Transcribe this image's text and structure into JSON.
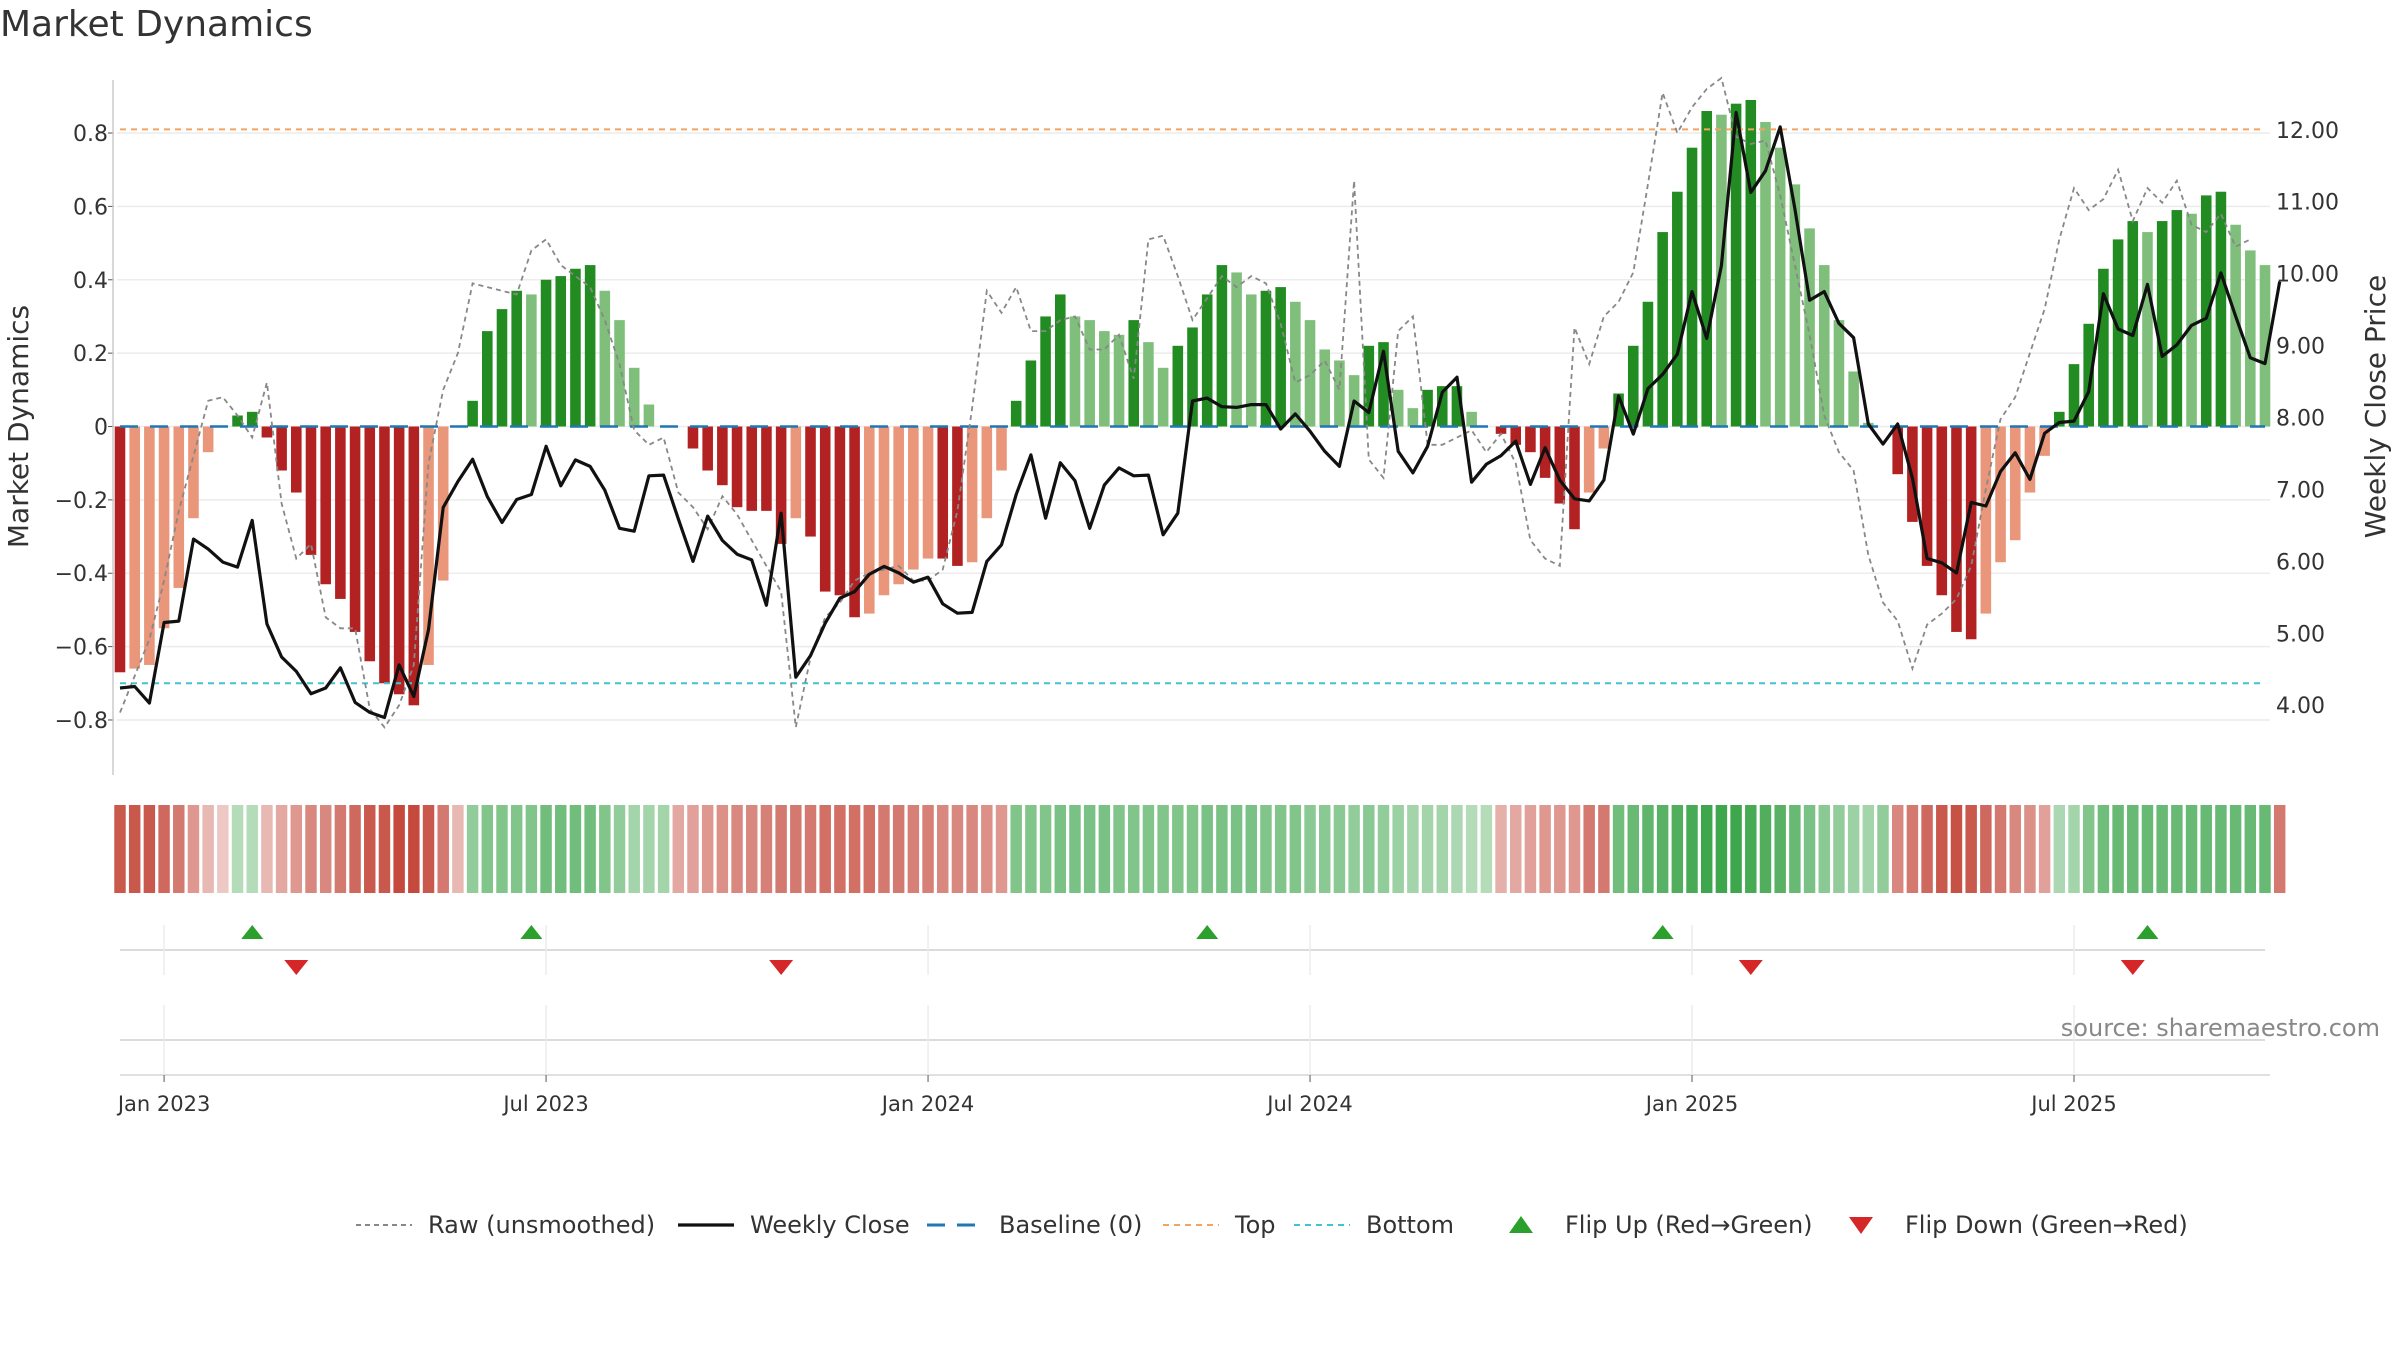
{
  "chart_data": {
    "type": "bar",
    "title": "Market Dynamics",
    "ylabel_left": "Market Dynamics",
    "ylabel_right": "Weekly Close Price",
    "ylim_left": [
      -0.95,
      0.95
    ],
    "ylim_right": [
      3.03,
      12.72
    ],
    "yticks_left": [
      "0.8",
      "0.6",
      "0.4",
      "0.2",
      "0",
      "−0.2",
      "−0.4",
      "−0.6",
      "−0.8"
    ],
    "yticks_right": [
      "12.00",
      "11.00",
      "10.00",
      "9.00",
      "8.00",
      "7.00",
      "6.00",
      "5.00",
      "4.00"
    ],
    "xticks": [
      "Jan 2023",
      "Jul 2023",
      "Jan 2024",
      "Jul 2024",
      "Jan 2025",
      "Jul 2025"
    ],
    "top_line": 0.81,
    "bottom_line": -0.7,
    "bars": [
      -0.67,
      -0.66,
      -0.65,
      -0.55,
      -0.44,
      -0.25,
      -0.07,
      0,
      0.03,
      0.04,
      -0.03,
      -0.12,
      -0.18,
      -0.35,
      -0.43,
      -0.47,
      -0.56,
      -0.64,
      -0.7,
      -0.73,
      -0.76,
      -0.65,
      -0.42,
      0,
      0.07,
      0.26,
      0.32,
      0.37,
      0.36,
      0.4,
      0.41,
      0.43,
      0.44,
      0.37,
      0.29,
      0.16,
      0.06,
      0,
      0,
      -0.06,
      -0.12,
      -0.16,
      -0.22,
      -0.23,
      -0.23,
      -0.32,
      -0.25,
      -0.3,
      -0.45,
      -0.46,
      -0.52,
      -0.51,
      -0.46,
      -0.43,
      -0.39,
      -0.36,
      -0.36,
      -0.38,
      -0.37,
      -0.25,
      -0.12,
      0.07,
      0.18,
      0.3,
      0.36,
      0.3,
      0.29,
      0.26,
      0.25,
      0.29,
      0.23,
      0.16,
      0.22,
      0.27,
      0.36,
      0.44,
      0.42,
      0.36,
      0.37,
      0.38,
      0.34,
      0.29,
      0.21,
      0.18,
      0.14,
      0.22,
      0.23,
      0.1,
      0.05,
      0.1,
      0.11,
      0.11,
      0.04,
      0,
      -0.02,
      -0.05,
      -0.07,
      -0.14,
      -0.21,
      -0.28,
      -0.18,
      -0.06,
      0.09,
      0.22,
      0.34,
      0.53,
      0.64,
      0.76,
      0.86,
      0.85,
      0.88,
      0.89,
      0.83,
      0.76,
      0.66,
      0.54,
      0.44,
      0.29,
      0.15,
      0.01,
      0,
      -0.13,
      -0.26,
      -0.38,
      -0.46,
      -0.56,
      -0.58,
      -0.51,
      -0.37,
      -0.31,
      -0.18,
      -0.08,
      0.04,
      0.17,
      0.28,
      0.43,
      0.51,
      0.56,
      0.53,
      0.56,
      0.59,
      0.58,
      0.63,
      0.64,
      0.55,
      0.48,
      0.44
    ],
    "close": [
      4.24,
      4.26,
      4.03,
      5.15,
      5.17,
      6.31,
      6.17,
      5.99,
      5.92,
      6.57,
      5.13,
      4.67,
      4.47,
      4.16,
      4.24,
      4.52,
      4.04,
      3.9,
      3.83,
      4.56,
      4.12,
      5.05,
      6.75,
      7.11,
      7.42,
      6.9,
      6.54,
      6.86,
      6.93,
      7.6,
      7.05,
      7.41,
      7.32,
      6.99,
      6.46,
      6.42,
      7.19,
      7.2,
      6.59,
      6.0,
      6.63,
      6.29,
      6.1,
      6.02,
      5.39,
      6.67,
      4.39,
      4.69,
      5.14,
      5.49,
      5.58,
      5.82,
      5.93,
      5.84,
      5.71,
      5.78,
      5.41,
      5.28,
      5.29,
      6.0,
      6.23,
      6.93,
      7.48,
      6.6,
      7.37,
      7.12,
      6.46,
      7.06,
      7.3,
      7.19,
      7.2,
      6.37,
      6.67,
      8.23,
      8.27,
      8.15,
      8.14,
      8.18,
      8.18,
      7.84,
      8.05,
      7.81,
      7.53,
      7.32,
      8.23,
      8.07,
      8.92,
      7.53,
      7.23,
      7.6,
      8.35,
      8.56,
      7.1,
      7.35,
      7.47,
      7.67,
      7.07,
      7.58,
      7.13,
      6.87,
      6.84,
      7.13,
      8.3,
      7.77,
      8.4,
      8.6,
      8.88,
      9.75,
      9.1,
      10.11,
      12.24,
      11.13,
      11.43,
      12.04,
      10.9,
      9.63,
      9.75,
      9.31,
      9.11,
      7.91,
      7.63,
      7.91,
      7.16,
      6.04,
      5.98,
      5.84,
      6.82,
      6.77,
      7.25,
      7.51,
      7.14,
      7.78,
      7.93,
      7.95,
      8.36,
      9.72,
      9.23,
      9.14,
      9.85,
      8.85,
      9.01,
      9.28,
      9.38,
      10.01,
      9.41,
      8.83,
      8.75,
      9.89
    ],
    "raw": [
      -0.78,
      -0.68,
      -0.58,
      -0.42,
      -0.23,
      -0.08,
      0.07,
      0.08,
      0.03,
      -0.03,
      0.12,
      -0.21,
      -0.36,
      -0.32,
      -0.52,
      -0.55,
      -0.55,
      -0.77,
      -0.82,
      -0.76,
      -0.65,
      -0.1,
      0.1,
      0.2,
      0.39,
      0.38,
      0.37,
      0.36,
      0.48,
      0.51,
      0.44,
      0.41,
      0.38,
      0.29,
      0.17,
      -0.01,
      -0.05,
      -0.03,
      -0.18,
      -0.22,
      -0.28,
      -0.19,
      -0.24,
      -0.31,
      -0.38,
      -0.45,
      -0.82,
      -0.63,
      -0.52,
      -0.48,
      -0.42,
      -0.4,
      -0.39,
      -0.38,
      -0.42,
      -0.42,
      -0.39,
      -0.23,
      0.05,
      0.37,
      0.31,
      0.38,
      0.26,
      0.26,
      0.29,
      0.3,
      0.21,
      0.21,
      0.25,
      0.13,
      0.51,
      0.52,
      0.41,
      0.29,
      0.35,
      0.41,
      0.38,
      0.41,
      0.39,
      0.28,
      0.12,
      0.14,
      0.18,
      0.1,
      0.67,
      -0.09,
      -0.14,
      0.26,
      0.3,
      -0.05,
      -0.05,
      -0.03,
      -0.01,
      -0.07,
      -0.02,
      -0.1,
      -0.31,
      -0.36,
      -0.38,
      0.27,
      0.17,
      0.3,
      0.34,
      0.42,
      0.66,
      0.91,
      0.8,
      0.87,
      0.92,
      0.95,
      0.79,
      0.77,
      0.78,
      0.63,
      0.44,
      0.25,
      0.03,
      -0.07,
      -0.12,
      -0.35,
      -0.48,
      -0.53,
      -0.66,
      -0.54,
      -0.51,
      -0.47,
      -0.38,
      -0.17,
      0.02,
      0.08,
      0.2,
      0.32,
      0.51,
      0.65,
      0.59,
      0.62,
      0.7,
      0.56,
      0.65,
      0.61,
      0.67,
      0.55,
      0.53,
      0.58,
      0.49,
      0.51
    ],
    "strip": [
      0.8,
      0.8,
      0.8,
      0.7,
      0.6,
      0.4,
      0.2,
      0.1,
      0.2,
      0.2,
      0.2,
      0.3,
      0.4,
      0.5,
      0.5,
      0.6,
      0.7,
      0.8,
      0.8,
      0.9,
      0.9,
      0.8,
      0.6,
      0.2,
      0.4,
      0.5,
      0.5,
      0.5,
      0.5,
      0.6,
      0.6,
      0.6,
      0.6,
      0.5,
      0.4,
      0.3,
      0.3,
      0.3,
      0.3,
      0.35,
      0.4,
      0.45,
      0.5,
      0.5,
      0.55,
      0.6,
      0.6,
      0.6,
      0.65,
      0.65,
      0.65,
      0.65,
      0.6,
      0.6,
      0.55,
      0.55,
      0.5,
      0.5,
      0.5,
      0.45,
      0.4,
      0.5,
      0.5,
      0.5,
      0.55,
      0.55,
      0.55,
      0.55,
      0.5,
      0.5,
      0.5,
      0.5,
      0.5,
      0.5,
      0.55,
      0.55,
      0.55,
      0.55,
      0.5,
      0.5,
      0.5,
      0.45,
      0.45,
      0.45,
      0.4,
      0.45,
      0.4,
      0.35,
      0.3,
      0.3,
      0.3,
      0.25,
      0.2,
      0.2,
      0.25,
      0.3,
      0.35,
      0.4,
      0.4,
      0.4,
      0.6,
      0.6,
      0.6,
      0.65,
      0.7,
      0.75,
      0.8,
      0.85,
      0.9,
      0.9,
      0.9,
      0.85,
      0.8,
      0.75,
      0.65,
      0.55,
      0.45,
      0.4,
      0.35,
      0.3,
      0.4,
      0.5,
      0.6,
      0.7,
      0.8,
      0.85,
      0.8,
      0.7,
      0.6,
      0.5,
      0.45,
      0.35,
      0.25,
      0.3,
      0.5,
      0.6,
      0.65,
      0.65,
      0.65,
      0.65,
      0.65,
      0.65,
      0.65,
      0.65,
      0.65,
      0.65,
      0.65,
      0.6
    ],
    "flip_up_idx": [
      9,
      28,
      74,
      105,
      138
    ],
    "flip_down_idx": [
      12,
      45,
      111,
      137
    ],
    "colors": {
      "strong_red": "#b22222",
      "weak_red": "#e9967a",
      "strong_green": "#228b22",
      "weak_green": "#7fbf7b",
      "close": "#111111",
      "raw": "#888888",
      "top": "#f4a460",
      "bottom": "#40c4d0",
      "baseline": "#1f77b4",
      "flip_up": "#2ca02c",
      "flip_down": "#d62728"
    },
    "legend": [
      {
        "label": "Raw (unsmoothed)",
        "kind": "raw"
      },
      {
        "label": "Weekly Close",
        "kind": "close"
      },
      {
        "label": "Baseline (0)",
        "kind": "baseline"
      },
      {
        "label": "Top",
        "kind": "top"
      },
      {
        "label": "Bottom",
        "kind": "bottom"
      },
      {
        "label": "Flip Up (Red→Green)",
        "kind": "flip_up"
      },
      {
        "label": "Flip Down (Green→Red)",
        "kind": "flip_down"
      }
    ]
  },
  "source": "source: sharemaestro.com"
}
